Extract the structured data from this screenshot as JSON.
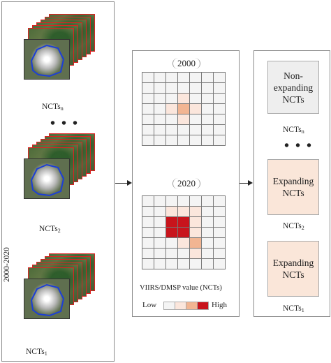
{
  "left_panel": {
    "stack_labels": [
      {
        "base": "NCTs",
        "sub": "n"
      },
      {
        "base": "NCTs",
        "sub": "2"
      },
      {
        "base": "NCTs",
        "sub": "1"
      }
    ],
    "ellipsis": "• • •",
    "year_range": "2000-2020"
  },
  "middle_panel": {
    "year_top": "2000",
    "year_bottom": "2020",
    "caption": "VIIRS/DMSP value (NCTs)",
    "legend_low": "Low",
    "legend_high": "High",
    "legend_colors": [
      "#f4f4f4",
      "#fbe6dc",
      "#f2b592",
      "#c8141c"
    ],
    "grid_2000": [
      [
        0,
        0,
        0,
        0,
        0,
        0,
        0
      ],
      [
        0,
        0,
        0,
        0,
        0,
        0,
        0
      ],
      [
        0,
        0,
        0,
        1,
        0,
        0,
        0
      ],
      [
        0,
        0,
        1,
        2,
        1,
        0,
        0
      ],
      [
        0,
        0,
        0,
        1,
        0,
        0,
        0
      ],
      [
        0,
        0,
        0,
        0,
        0,
        0,
        0
      ],
      [
        0,
        0,
        0,
        0,
        0,
        0,
        0
      ]
    ],
    "grid_2020": [
      [
        0,
        0,
        0,
        0,
        0,
        0,
        0
      ],
      [
        0,
        0,
        1,
        1,
        1,
        0,
        0
      ],
      [
        0,
        0,
        3,
        3,
        1,
        0,
        0
      ],
      [
        0,
        0,
        3,
        3,
        1,
        0,
        0
      ],
      [
        0,
        0,
        0,
        1,
        2,
        0,
        0
      ],
      [
        0,
        0,
        0,
        0,
        1,
        0,
        0
      ],
      [
        0,
        0,
        0,
        0,
        0,
        0,
        0
      ]
    ],
    "cell_colors": [
      "#f4f4f4",
      "#fbe6dc",
      "#f2b592",
      "#c8141c"
    ]
  },
  "right_panel": {
    "boxes": [
      {
        "text_lines": [
          "Non-",
          "expanding",
          "NCTs"
        ],
        "fill": "#eeeeee",
        "label_base": "NCTs",
        "label_sub": "n"
      },
      {
        "text_lines": [
          "Expanding",
          "NCTs"
        ],
        "fill": "#fae6d9",
        "label_base": "NCTs",
        "label_sub": "2"
      },
      {
        "text_lines": [
          "Expanding",
          "NCTs"
        ],
        "fill": "#fae6d9",
        "label_base": "NCTs",
        "label_sub": "1"
      }
    ],
    "ellipsis": "• • •"
  }
}
